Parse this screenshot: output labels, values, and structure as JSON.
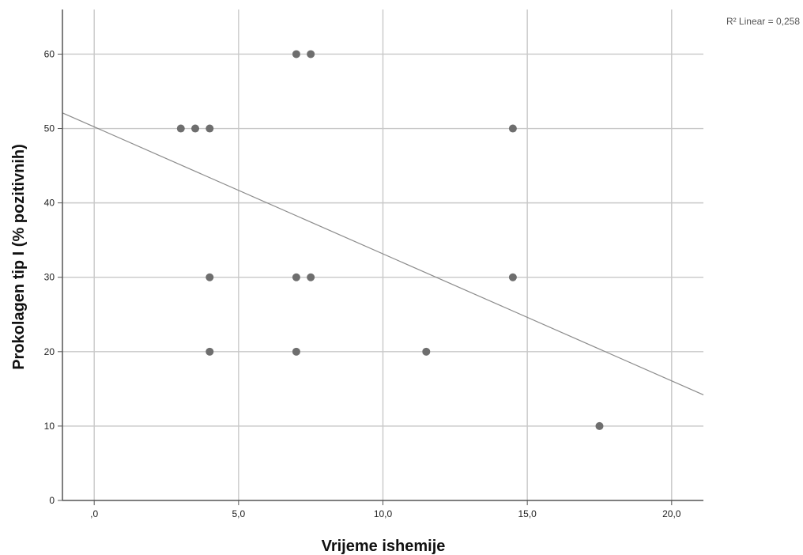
{
  "chart_data": {
    "type": "scatter",
    "xlabel": "Vrijeme ishemije",
    "ylabel": "Prokolagen tip I (% pozitivnih)",
    "xlim": [
      -1.1,
      21.1
    ],
    "ylim": [
      0,
      66
    ],
    "x_ticks": [
      0,
      5,
      10,
      15,
      20
    ],
    "x_tick_labels": [
      ",0",
      "5,0",
      "10,0",
      "15,0",
      "20,0"
    ],
    "y_ticks": [
      0,
      10,
      20,
      30,
      40,
      50,
      60
    ],
    "y_tick_labels": [
      "0",
      "10",
      "20",
      "30",
      "40",
      "50",
      "60"
    ],
    "grid": true,
    "points": [
      {
        "x": 7.0,
        "y": 60
      },
      {
        "x": 7.5,
        "y": 60
      },
      {
        "x": 3.0,
        "y": 50
      },
      {
        "x": 3.5,
        "y": 50
      },
      {
        "x": 4.0,
        "y": 50
      },
      {
        "x": 14.5,
        "y": 50
      },
      {
        "x": 4.0,
        "y": 30
      },
      {
        "x": 7.0,
        "y": 30
      },
      {
        "x": 7.5,
        "y": 30
      },
      {
        "x": 14.5,
        "y": 30
      },
      {
        "x": 4.0,
        "y": 20
      },
      {
        "x": 7.0,
        "y": 20
      },
      {
        "x": 11.5,
        "y": 20
      },
      {
        "x": 17.5,
        "y": 10
      }
    ],
    "fit_line": {
      "x0": -1.1,
      "y0": 52.1,
      "x1": 21.1,
      "y1": 14.2
    },
    "annotation": "R² Linear = 0,258",
    "colors": {
      "point": "#6e6e6e",
      "grid": "#c8c8c8",
      "axis": "#555555",
      "fit": "#8c8c8c"
    }
  }
}
